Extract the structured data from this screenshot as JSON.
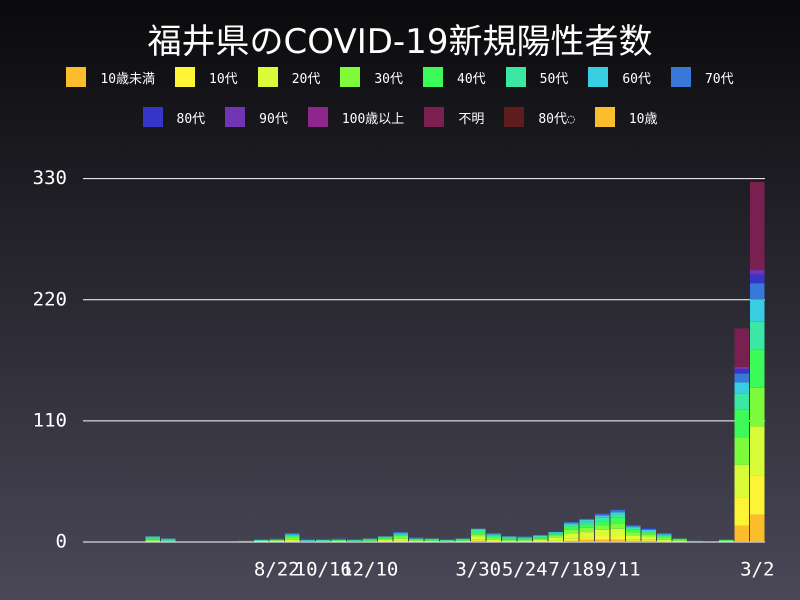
{
  "chart_data": {
    "type": "stacked-bar",
    "title": "福井県のCOVID-19新規陽性者数",
    "categories": [
      null,
      null,
      null,
      null,
      null,
      null,
      null,
      null,
      null,
      null,
      null,
      null,
      "8/22",
      null,
      null,
      "10/16",
      null,
      null,
      "12/10",
      null,
      null,
      null,
      null,
      null,
      null,
      "3/30",
      null,
      null,
      "5/24",
      null,
      null,
      "7/18",
      null,
      null,
      "9/11",
      null,
      null,
      null,
      null,
      null,
      null,
      null,
      null,
      "3/2"
    ],
    "ylim": [
      0,
      356
    ],
    "yticks": [
      0,
      110,
      220,
      330
    ],
    "grid": true,
    "series": [
      {
        "name": "10歳未満",
        "color": "#fbbd2b",
        "values": [
          0,
          0,
          0,
          0,
          0,
          0,
          0,
          0,
          0,
          0,
          0,
          0,
          0,
          0,
          0,
          0,
          0,
          0,
          0,
          0,
          0,
          0,
          0,
          0,
          0,
          1,
          0,
          0,
          0,
          0,
          0,
          1,
          2,
          2,
          2,
          1,
          1,
          0,
          0,
          0,
          0,
          0,
          15,
          25
        ]
      },
      {
        "name": "10代",
        "color": "#fcf435",
        "values": [
          0,
          0,
          0,
          0,
          0,
          0,
          0,
          0,
          0,
          0,
          0,
          0,
          0,
          0,
          0,
          0,
          0,
          0,
          0,
          0,
          1,
          0,
          0,
          0,
          0,
          1,
          0,
          0,
          0,
          0,
          1,
          2,
          2,
          3,
          3,
          1,
          1,
          0,
          0,
          0,
          0,
          0,
          25,
          35
        ]
      },
      {
        "name": "20代",
        "color": "#dafc38",
        "values": [
          0,
          0,
          0,
          0,
          1,
          0,
          0,
          0,
          0,
          0,
          0,
          1,
          1,
          2,
          0,
          0,
          1,
          0,
          0,
          2,
          2,
          1,
          1,
          0,
          1,
          3,
          2,
          1,
          1,
          2,
          3,
          5,
          5,
          6,
          7,
          4,
          3,
          2,
          1,
          0,
          0,
          1,
          30,
          45
        ]
      },
      {
        "name": "30代",
        "color": "#7efc3b",
        "values": [
          0,
          0,
          0,
          0,
          1,
          1,
          0,
          0,
          0,
          0,
          0,
          0,
          1,
          2,
          0,
          1,
          0,
          0,
          1,
          1,
          2,
          1,
          0,
          1,
          0,
          2,
          2,
          1,
          1,
          1,
          2,
          3,
          4,
          4,
          5,
          3,
          2,
          2,
          1,
          0,
          0,
          0,
          25,
          35
        ]
      },
      {
        "name": "40代",
        "color": "#3cfb58",
        "values": [
          0,
          0,
          0,
          0,
          1,
          0,
          0,
          0,
          0,
          0,
          1,
          0,
          0,
          1,
          1,
          0,
          1,
          1,
          1,
          1,
          1,
          1,
          1,
          0,
          1,
          2,
          1,
          1,
          1,
          1,
          1,
          3,
          3,
          4,
          5,
          2,
          2,
          1,
          0,
          0,
          0,
          1,
          25,
          35
        ]
      },
      {
        "name": "50代",
        "color": "#3ae8a4",
        "values": [
          0,
          0,
          0,
          0,
          1,
          1,
          0,
          0,
          0,
          0,
          0,
          1,
          0,
          1,
          0,
          1,
          0,
          1,
          0,
          0,
          1,
          0,
          1,
          1,
          1,
          2,
          1,
          1,
          1,
          1,
          1,
          2,
          2,
          3,
          3,
          2,
          1,
          1,
          1,
          1,
          0,
          0,
          15,
          25
        ]
      },
      {
        "name": "60代",
        "color": "#38cde0",
        "values": [
          0,
          0,
          0,
          0,
          1,
          1,
          0,
          0,
          0,
          0,
          0,
          0,
          0,
          1,
          1,
          0,
          0,
          0,
          1,
          1,
          1,
          0,
          0,
          0,
          0,
          1,
          1,
          1,
          0,
          1,
          1,
          1,
          2,
          2,
          2,
          1,
          1,
          1,
          0,
          0,
          0,
          0,
          10,
          20
        ]
      },
      {
        "name": "70代",
        "color": "#3878d8",
        "values": [
          0,
          0,
          0,
          0,
          0,
          0,
          0,
          0,
          0,
          0,
          0,
          0,
          1,
          1,
          0,
          0,
          1,
          0,
          0,
          0,
          1,
          1,
          0,
          0,
          0,
          0,
          1,
          0,
          1,
          0,
          0,
          1,
          1,
          1,
          2,
          1,
          1,
          1,
          0,
          0,
          0,
          0,
          8,
          15
        ]
      },
      {
        "name": "80代",
        "color": "#3535c8",
        "values": [
          0,
          0,
          0,
          0,
          0,
          0,
          0,
          0,
          0,
          0,
          0,
          0,
          0,
          0,
          0,
          0,
          0,
          0,
          0,
          0,
          0,
          0,
          0,
          0,
          0,
          0,
          0,
          0,
          0,
          0,
          0,
          0,
          0,
          0,
          1,
          0,
          1,
          0,
          0,
          0,
          0,
          0,
          4,
          8
        ]
      },
      {
        "name": "90代",
        "color": "#7034b4",
        "values": [
          0,
          0,
          0,
          0,
          0,
          0,
          0,
          0,
          0,
          0,
          0,
          0,
          0,
          0,
          0,
          0,
          0,
          0,
          0,
          0,
          0,
          0,
          0,
          0,
          0,
          0,
          0,
          0,
          0,
          0,
          0,
          0,
          0,
          1,
          0,
          0,
          0,
          0,
          0,
          0,
          0,
          0,
          2,
          4
        ]
      },
      {
        "name": "100歳以上",
        "color": "#8e268e",
        "values": [
          0,
          0,
          0,
          0,
          0,
          0,
          0,
          0,
          0,
          0,
          0,
          0,
          0,
          0,
          0,
          0,
          0,
          0,
          0,
          0,
          0,
          0,
          0,
          0,
          0,
          0,
          0,
          0,
          0,
          0,
          0,
          0,
          0,
          0,
          0,
          0,
          0,
          0,
          0,
          0,
          0,
          0,
          0,
          0
        ]
      },
      {
        "name": "不明",
        "color": "#7a2050",
        "values": [
          0,
          0,
          0,
          0,
          0,
          0,
          0,
          0,
          0,
          0,
          0,
          0,
          0,
          0,
          0,
          0,
          0,
          0,
          0,
          0,
          0,
          0,
          0,
          0,
          0,
          0,
          0,
          0,
          0,
          0,
          0,
          0,
          0,
          0,
          0,
          0,
          0,
          0,
          0,
          0,
          0,
          0,
          35,
          80
        ]
      },
      {
        "name": "80代◌",
        "color": "#5e1c1c",
        "values": [
          0,
          0,
          0,
          0,
          0,
          0,
          0,
          0,
          0,
          0,
          0,
          0,
          0,
          0,
          0,
          0,
          0,
          0,
          0,
          0,
          0,
          0,
          0,
          0,
          0,
          0,
          0,
          0,
          0,
          0,
          0,
          0,
          0,
          0,
          0,
          0,
          0,
          0,
          0,
          0,
          0,
          0,
          0,
          0
        ]
      },
      {
        "name": "10歳",
        "color": "#fbbd2b",
        "values": [
          0,
          0,
          0,
          0,
          0,
          0,
          0,
          0,
          0,
          0,
          0,
          0,
          0,
          0,
          0,
          0,
          0,
          0,
          0,
          0,
          0,
          0,
          0,
          0,
          0,
          0,
          0,
          0,
          0,
          0,
          0,
          0,
          0,
          0,
          0,
          0,
          0,
          0,
          0,
          0,
          0,
          0,
          0,
          0
        ]
      }
    ]
  }
}
